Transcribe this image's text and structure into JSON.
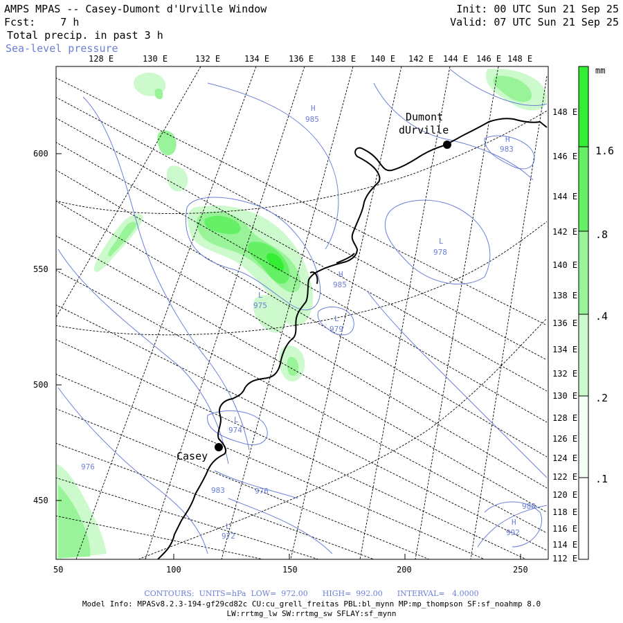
{
  "header": {
    "title": "AMPS MPAS -- Casey-Dumont d'Urville Window",
    "fcst_label": "Fcst:",
    "fcst_value": "7 h",
    "field": "Total precip. in past 3 h",
    "overlay": "Sea-level pressure",
    "init": "Init: 00 UTC Sun 21 Sep 25",
    "valid": "Valid: 07 UTC Sun 21 Sep 25"
  },
  "top_lon_labels": [
    "128 E",
    "130 E",
    "132 E",
    "134 E",
    "136 E",
    "138 E",
    "140 E",
    "142 E",
    "144 E",
    "146 E",
    "148 E"
  ],
  "right_lon_labels": [
    "148 E",
    "146 E",
    "144 E",
    "142 E",
    "140 E",
    "138 E",
    "136 E",
    "134 E",
    "132 E",
    "130 E",
    "128 E",
    "126 E",
    "124 E",
    "122 E",
    "120 E",
    "118 E",
    "116 E",
    "114 E",
    "112 E"
  ],
  "y_axis_labels": [
    "600",
    "550",
    "500",
    "450"
  ],
  "x_axis_labels": [
    "50",
    "100",
    "150",
    "200",
    "250"
  ],
  "colorbar": {
    "unit": "mm",
    "labels": [
      "1.6",
      ".8",
      ".4",
      ".2",
      ".1"
    ],
    "colors": [
      "#33ee33",
      "#66f066",
      "#99f499",
      "#ccfacc",
      "#ffffff"
    ]
  },
  "places": [
    {
      "name_line1": "Dumont",
      "name_line2": "dUrville"
    },
    {
      "name_line1": "Casey",
      "name_line2": ""
    }
  ],
  "slp_labels": [
    {
      "mark": "H",
      "value": "985"
    },
    {
      "mark": "H",
      "value": "983"
    },
    {
      "mark": "L",
      "value": "978"
    },
    {
      "mark": "H",
      "value": "985"
    },
    {
      "mark": "L",
      "value": "975"
    },
    {
      "mark": "L",
      "value": "979"
    },
    {
      "mark": "L",
      "value": "974"
    },
    {
      "mark": "",
      "value": "976"
    },
    {
      "mark": "",
      "value": "983"
    },
    {
      "mark": "",
      "value": "976"
    },
    {
      "mark": "L",
      "value": "972"
    },
    {
      "mark": "H",
      "value": "992"
    },
    {
      "mark": "",
      "value": "988"
    }
  ],
  "footer": {
    "contours": "CONTOURS:  UNITS=hPa  LOW=  972.00      HIGH=  992.00      INTERVAL=   4.0000",
    "model_info": "Model Info: MPASv8.2.3-194-gf29cd82c CU:cu_grell_freitas PBL:bl_mynn MP:mp_thompson SF:sf_noahmp 8.0",
    "model_info2": "LW:rrtmg_lw SW:rrtmg_sw SFLAY:sf_mynn"
  }
}
